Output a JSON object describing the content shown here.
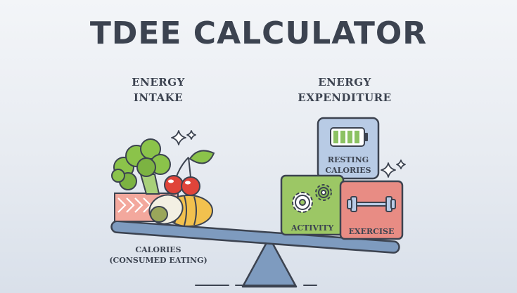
{
  "title": "TDEE CALCULATOR",
  "intake": {
    "heading_line1": "ENERGY",
    "heading_line2": "INTAKE",
    "caption_line1": "CALORIES",
    "caption_line2": "(CONSUMED EATING)"
  },
  "expenditure": {
    "heading_line1": "ENERGY",
    "heading_line2": "EXPENDITURE",
    "boxes": {
      "resting_line1": "RESTING",
      "resting_line2": "CALORIES",
      "activity": "ACTIVITY",
      "exercise": "EXERCISE"
    }
  },
  "colors": {
    "outline": "#3c4350",
    "resting_box": "#b8cbe5",
    "activity_box": "#9cc765",
    "exercise_box": "#e88c84",
    "beam": "#7e9bbf",
    "fulcrum": "#7e9bbf",
    "battery": "#8cc263"
  },
  "icons": [
    "broccoli-icon",
    "cherries-icon",
    "salmon-icon",
    "bread-icon",
    "avocado-icon",
    "battery-icon",
    "gears-icon",
    "dumbbell-icon",
    "sparkle-icon"
  ]
}
